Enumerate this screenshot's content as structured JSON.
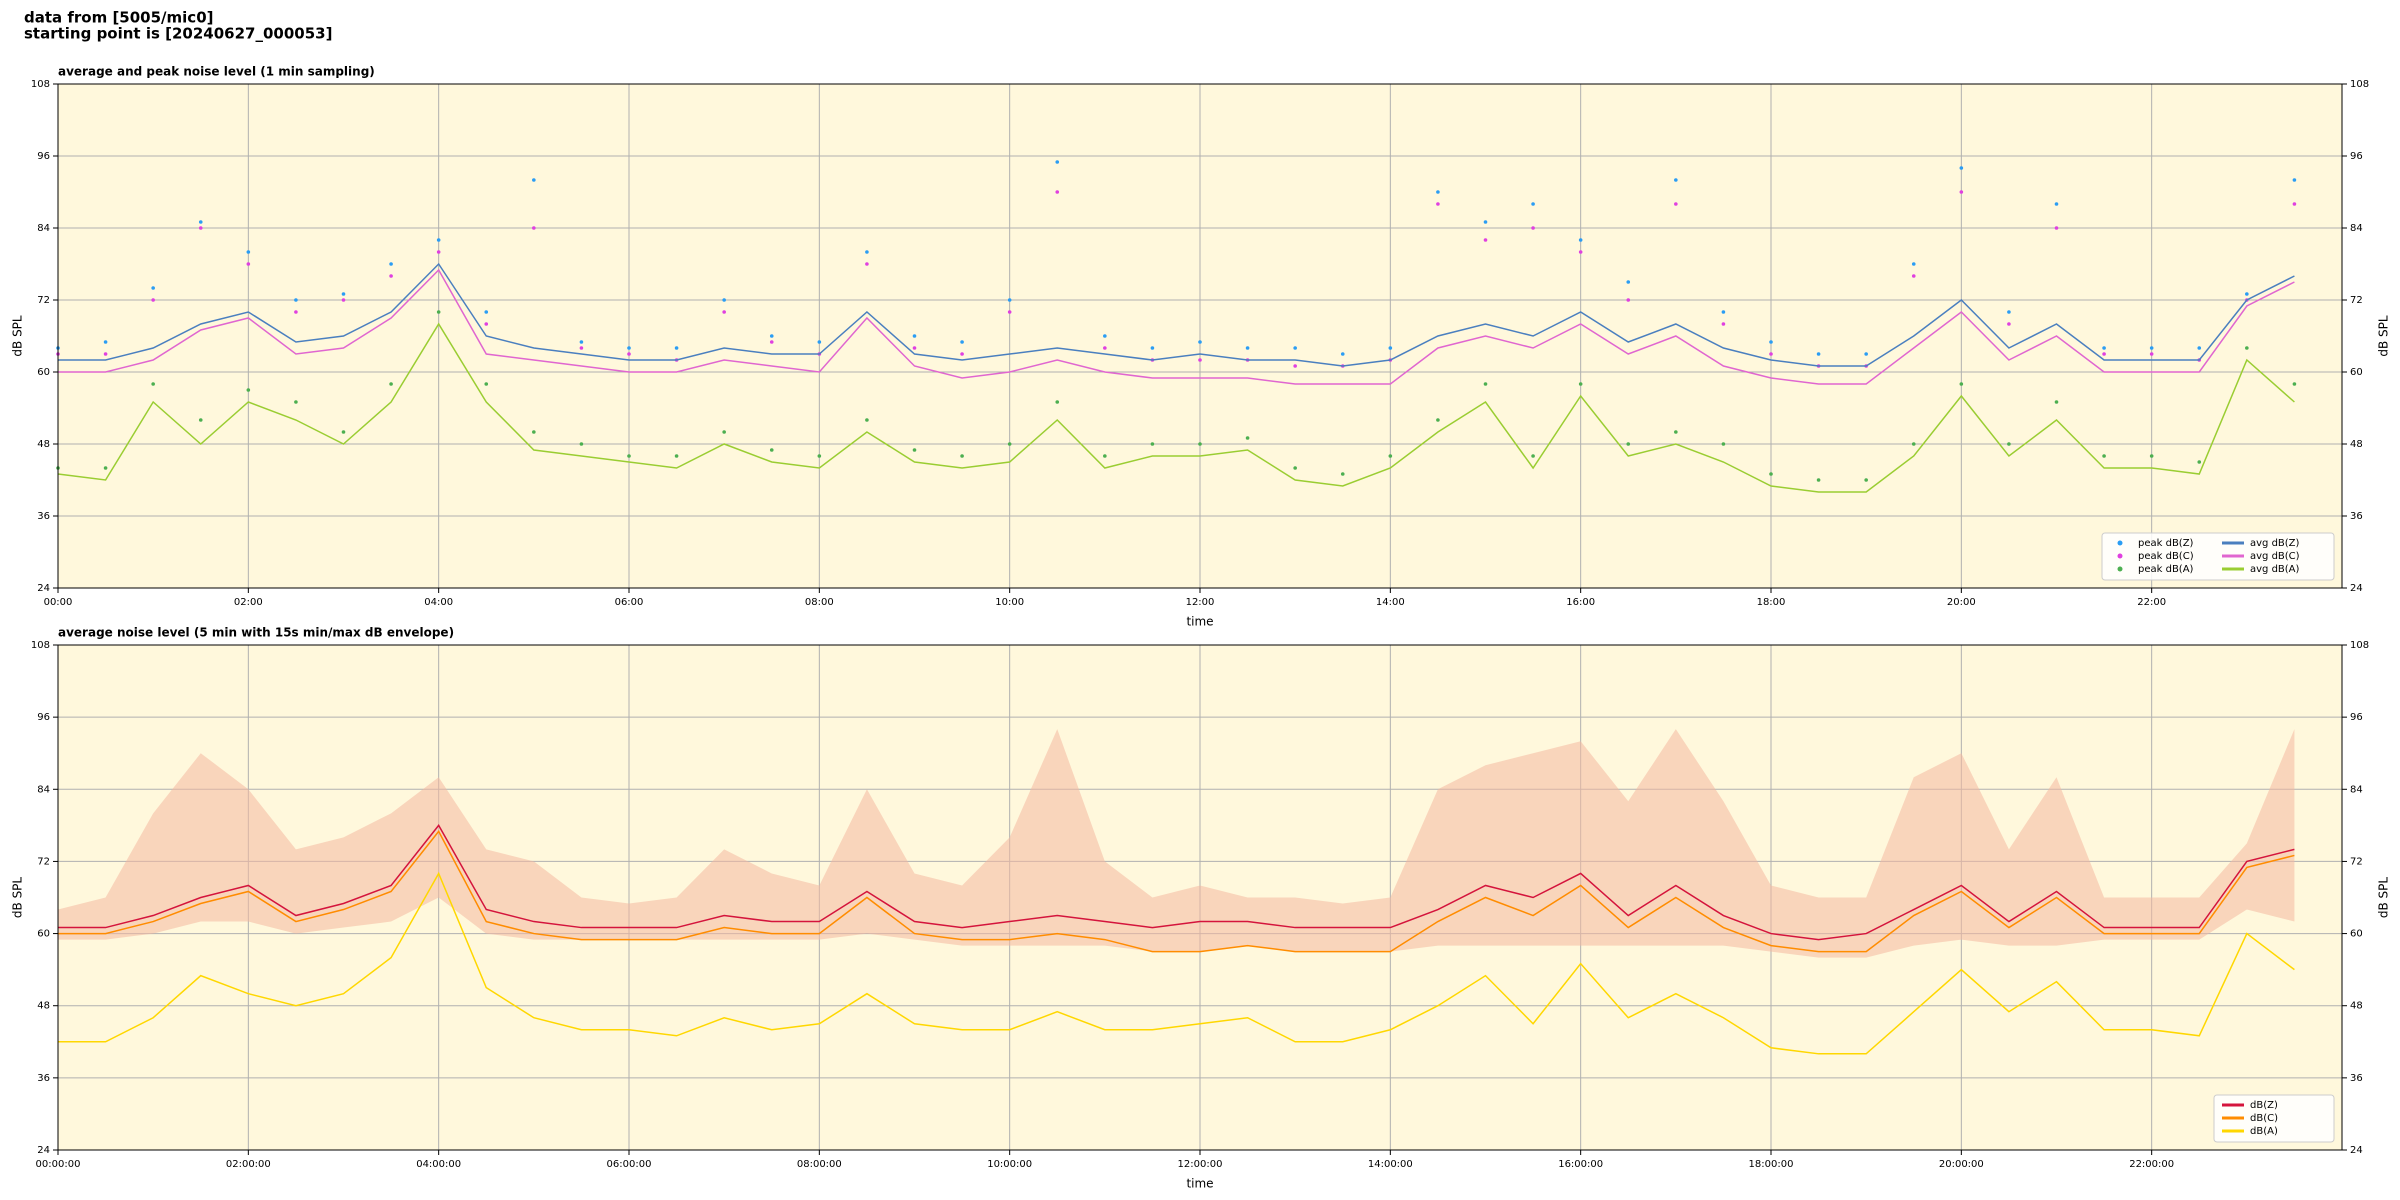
{
  "header": {
    "lines": [
      "data from [5005/mic0]",
      "starting point is [20240627_000053]"
    ]
  },
  "chart_data": [
    {
      "type": "line",
      "title": "average and peak noise level (1 min sampling)",
      "xlabel": "time",
      "ylabel": "dB SPL",
      "x": [
        0,
        0.5,
        1,
        1.5,
        2,
        2.5,
        3,
        3.5,
        4,
        4.5,
        5,
        5.5,
        6,
        6.5,
        7,
        7.5,
        8,
        8.5,
        9,
        9.5,
        10,
        10.5,
        11,
        11.5,
        12,
        12.5,
        13,
        13.5,
        14,
        14.5,
        15,
        15.5,
        16,
        16.5,
        17,
        17.5,
        18,
        18.5,
        19,
        19.5,
        20,
        20.5,
        21,
        21.5,
        22,
        22.5,
        23,
        23.5
      ],
      "xlim": [
        0,
        24
      ],
      "xticks": [
        {
          "value": 0,
          "label": "00:00"
        },
        {
          "value": 2,
          "label": "02:00"
        },
        {
          "value": 4,
          "label": "04:00"
        },
        {
          "value": 6,
          "label": "06:00"
        },
        {
          "value": 8,
          "label": "08:00"
        },
        {
          "value": 10,
          "label": "10:00"
        },
        {
          "value": 12,
          "label": "12:00"
        },
        {
          "value": 14,
          "label": "14:00"
        },
        {
          "value": 16,
          "label": "16:00"
        },
        {
          "value": 18,
          "label": "18:00"
        },
        {
          "value": 20,
          "label": "20:00"
        },
        {
          "value": 22,
          "label": "22:00"
        }
      ],
      "ylim": [
        24,
        108
      ],
      "yticks": [
        24,
        36,
        48,
        60,
        72,
        84,
        96,
        108
      ],
      "grid": true,
      "legend": "lower right",
      "series": [
        {
          "name": "peak dB(Z)",
          "type": "scatter",
          "color": "#2a9df4",
          "values": [
            64,
            65,
            74,
            85,
            80,
            72,
            73,
            78,
            82,
            70,
            92,
            65,
            64,
            64,
            72,
            66,
            65,
            80,
            66,
            65,
            72,
            95,
            66,
            64,
            65,
            64,
            64,
            63,
            64,
            90,
            85,
            88,
            82,
            75,
            92,
            70,
            65,
            63,
            63,
            78,
            94,
            70,
            88,
            64,
            64,
            64,
            73,
            92
          ]
        },
        {
          "name": "peak dB(C)",
          "type": "scatter",
          "color": "#e040e0",
          "values": [
            63,
            63,
            72,
            84,
            78,
            70,
            72,
            76,
            80,
            68,
            84,
            64,
            63,
            62,
            70,
            65,
            63,
            78,
            64,
            63,
            70,
            90,
            64,
            62,
            62,
            62,
            61,
            61,
            62,
            88,
            82,
            84,
            80,
            72,
            88,
            68,
            63,
            61,
            61,
            76,
            90,
            68,
            84,
            63,
            63,
            62,
            72,
            88
          ]
        },
        {
          "name": "peak dB(A)",
          "type": "scatter",
          "color": "#4caf50",
          "values": [
            44,
            44,
            58,
            52,
            57,
            55,
            50,
            58,
            70,
            58,
            50,
            48,
            46,
            46,
            50,
            47,
            46,
            52,
            47,
            46,
            48,
            55,
            46,
            48,
            48,
            49,
            44,
            43,
            46,
            52,
            58,
            46,
            58,
            48,
            50,
            48,
            43,
            42,
            42,
            48,
            58,
            48,
            55,
            46,
            46,
            45,
            64,
            58
          ]
        },
        {
          "name": "avg dB(Z)",
          "type": "line",
          "color": "#4a7fbf",
          "values": [
            62,
            62,
            64,
            68,
            70,
            65,
            66,
            70,
            78,
            66,
            64,
            63,
            62,
            62,
            64,
            63,
            63,
            70,
            63,
            62,
            63,
            64,
            63,
            62,
            63,
            62,
            62,
            61,
            62,
            66,
            68,
            66,
            70,
            65,
            68,
            64,
            62,
            61,
            61,
            66,
            72,
            64,
            68,
            62,
            62,
            62,
            72,
            76
          ]
        },
        {
          "name": "avg dB(C)",
          "type": "line",
          "color": "#e066d0",
          "values": [
            60,
            60,
            62,
            67,
            69,
            63,
            64,
            69,
            77,
            63,
            62,
            61,
            60,
            60,
            62,
            61,
            60,
            69,
            61,
            59,
            60,
            62,
            60,
            59,
            59,
            59,
            58,
            58,
            58,
            64,
            66,
            64,
            68,
            63,
            66,
            61,
            59,
            58,
            58,
            64,
            70,
            62,
            66,
            60,
            60,
            60,
            71,
            75
          ]
        },
        {
          "name": "avg dB(A)",
          "type": "line",
          "color": "#9acd32",
          "values": [
            43,
            42,
            55,
            48,
            55,
            52,
            48,
            55,
            68,
            55,
            47,
            46,
            45,
            44,
            48,
            45,
            44,
            50,
            45,
            44,
            45,
            52,
            44,
            46,
            46,
            47,
            42,
            41,
            44,
            50,
            55,
            44,
            56,
            46,
            48,
            45,
            41,
            40,
            40,
            46,
            56,
            46,
            52,
            44,
            44,
            43,
            62,
            55
          ]
        }
      ]
    },
    {
      "type": "line",
      "title": "average noise level (5 min with 15s min/max dB envelope)",
      "xlabel": "time",
      "ylabel": "dB SPL",
      "x": [
        0,
        0.5,
        1,
        1.5,
        2,
        2.5,
        3,
        3.5,
        4,
        4.5,
        5,
        5.5,
        6,
        6.5,
        7,
        7.5,
        8,
        8.5,
        9,
        9.5,
        10,
        10.5,
        11,
        11.5,
        12,
        12.5,
        13,
        13.5,
        14,
        14.5,
        15,
        15.5,
        16,
        16.5,
        17,
        17.5,
        18,
        18.5,
        19,
        19.5,
        20,
        20.5,
        21,
        21.5,
        22,
        22.5,
        23,
        23.5
      ],
      "xlim": [
        0,
        24
      ],
      "xticks": [
        {
          "value": 0,
          "label": "00:00:00"
        },
        {
          "value": 2,
          "label": "02:00:00"
        },
        {
          "value": 4,
          "label": "04:00:00"
        },
        {
          "value": 6,
          "label": "06:00:00"
        },
        {
          "value": 8,
          "label": "08:00:00"
        },
        {
          "value": 10,
          "label": "10:00:00"
        },
        {
          "value": 12,
          "label": "12:00:00"
        },
        {
          "value": 14,
          "label": "14:00:00"
        },
        {
          "value": 16,
          "label": "16:00:00"
        },
        {
          "value": 18,
          "label": "18:00:00"
        },
        {
          "value": 20,
          "label": "20:00:00"
        },
        {
          "value": 22,
          "label": "22:00:00"
        }
      ],
      "ylim": [
        24,
        108
      ],
      "yticks": [
        24,
        36,
        48,
        60,
        72,
        84,
        96,
        108
      ],
      "grid": true,
      "legend": "lower right",
      "band": {
        "color": "#f4b8a0",
        "upper": [
          64,
          66,
          80,
          90,
          84,
          74,
          76,
          80,
          86,
          74,
          72,
          66,
          65,
          66,
          74,
          70,
          68,
          84,
          70,
          68,
          76,
          94,
          72,
          66,
          68,
          66,
          66,
          65,
          66,
          84,
          88,
          90,
          92,
          82,
          94,
          82,
          68,
          66,
          66,
          86,
          90,
          74,
          86,
          66,
          66,
          66,
          75,
          94
        ],
        "lower": [
          59,
          59,
          60,
          62,
          62,
          60,
          61,
          62,
          66,
          60,
          59,
          59,
          59,
          59,
          59,
          59,
          59,
          60,
          59,
          58,
          58,
          58,
          58,
          57,
          57,
          58,
          57,
          57,
          57,
          58,
          58,
          58,
          58,
          58,
          58,
          58,
          57,
          56,
          56,
          58,
          59,
          58,
          58,
          59,
          59,
          59,
          64,
          62
        ]
      },
      "series": [
        {
          "name": "dB(Z)",
          "type": "line",
          "color": "#d4143c",
          "values": [
            61,
            61,
            63,
            66,
            68,
            63,
            65,
            68,
            78,
            64,
            62,
            61,
            61,
            61,
            63,
            62,
            62,
            67,
            62,
            61,
            62,
            63,
            62,
            61,
            62,
            62,
            61,
            61,
            61,
            64,
            68,
            66,
            70,
            63,
            68,
            63,
            60,
            59,
            60,
            64,
            68,
            62,
            67,
            61,
            61,
            61,
            72,
            74
          ]
        },
        {
          "name": "dB(C)",
          "type": "line",
          "color": "#ff8c00",
          "values": [
            60,
            60,
            62,
            65,
            67,
            62,
            64,
            67,
            77,
            62,
            60,
            59,
            59,
            59,
            61,
            60,
            60,
            66,
            60,
            59,
            59,
            60,
            59,
            57,
            57,
            58,
            57,
            57,
            57,
            62,
            66,
            63,
            68,
            61,
            66,
            61,
            58,
            57,
            57,
            63,
            67,
            61,
            66,
            60,
            60,
            60,
            71,
            73
          ]
        },
        {
          "name": "dB(A)",
          "type": "line",
          "color": "#ffd700",
          "values": [
            42,
            42,
            46,
            53,
            50,
            48,
            50,
            56,
            70,
            51,
            46,
            44,
            44,
            43,
            46,
            44,
            45,
            50,
            45,
            44,
            44,
            47,
            44,
            44,
            45,
            46,
            42,
            42,
            44,
            48,
            53,
            45,
            55,
            46,
            50,
            46,
            41,
            40,
            40,
            47,
            54,
            47,
            52,
            44,
            44,
            43,
            60,
            54
          ]
        }
      ]
    }
  ]
}
